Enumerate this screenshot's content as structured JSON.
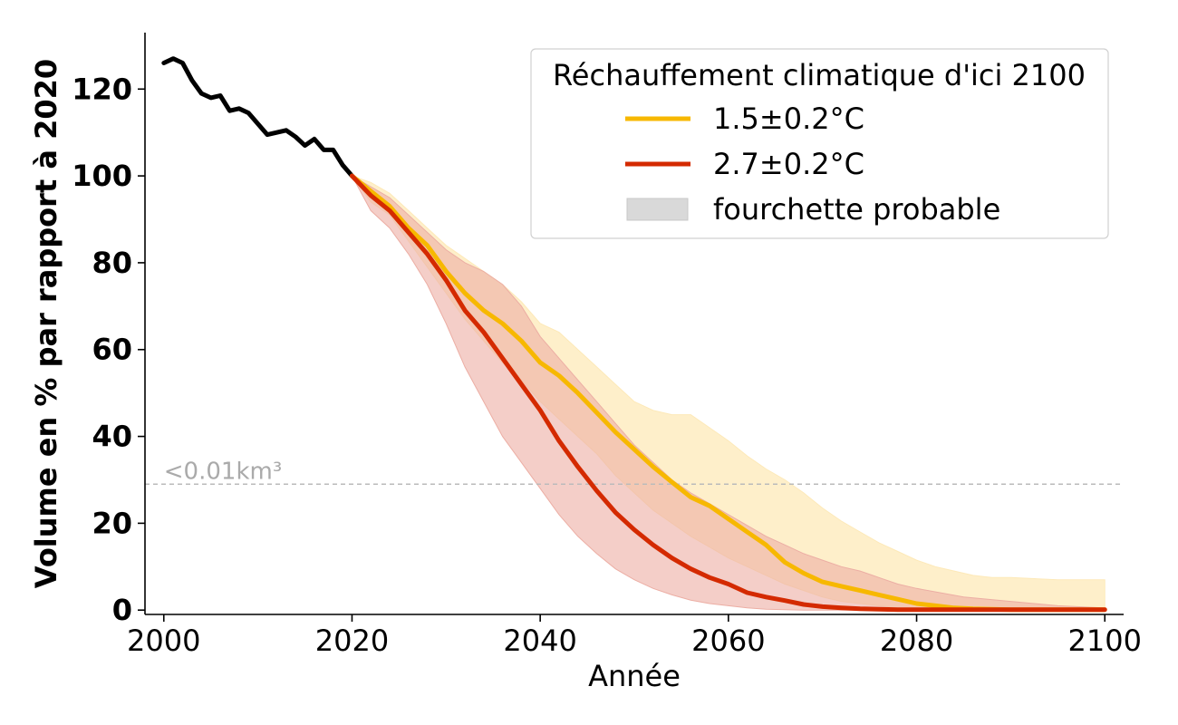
{
  "chart_data": {
    "type": "line",
    "xlabel": "Année",
    "ylabel": "Volume en % par rapport à 2020",
    "xlim": [
      1998,
      2102
    ],
    "ylim": [
      -1,
      133
    ],
    "xticks": [
      "2000",
      "2020",
      "2040",
      "2060",
      "2080",
      "2100"
    ],
    "yticks": [
      "0",
      "20",
      "40",
      "60",
      "80",
      "100",
      "120"
    ],
    "grid": false,
    "legend": {
      "title": "Réchauffement climatique d'ici 2100",
      "placement": "top-right",
      "entries": [
        "1.5±0.2°C",
        "2.7±0.2°C",
        "fourchette probable"
      ],
      "band_label": "fourchette probable"
    },
    "reference_line": {
      "y": 29,
      "label": "<0.01km³",
      "color": "#bbbbbb"
    },
    "colors": {
      "historical": "#000000",
      "s15": "#f7b800",
      "s27": "#d42a00",
      "band15": "#fde9b8",
      "band27": "#ecaea4",
      "legend_band": "#d9d9d9"
    },
    "historical": {
      "x": [
        2000,
        2001,
        2002,
        2003,
        2004,
        2005,
        2006,
        2007,
        2008,
        2009,
        2010,
        2011,
        2012,
        2013,
        2014,
        2015,
        2016,
        2017,
        2018,
        2019,
        2020
      ],
      "y": [
        126,
        127,
        126,
        122,
        119,
        118,
        118.5,
        115,
        115.5,
        114.5,
        112,
        109.5,
        110,
        110.5,
        109,
        107,
        108.5,
        106,
        106,
        102.5,
        100
      ]
    },
    "series": [
      {
        "name": "1.5±0.2°C",
        "x": [
          2020,
          2022,
          2024,
          2026,
          2028,
          2030,
          2032,
          2034,
          2036,
          2038,
          2040,
          2042,
          2044,
          2046,
          2048,
          2050,
          2052,
          2054,
          2056,
          2058,
          2060,
          2062,
          2064,
          2066,
          2068,
          2070,
          2072,
          2074,
          2076,
          2078,
          2080,
          2082,
          2084,
          2086,
          2088,
          2090,
          2095,
          2100
        ],
        "y": [
          100,
          96.5,
          93,
          88,
          84,
          78,
          73,
          69,
          66,
          62,
          57,
          54,
          50,
          45.5,
          41,
          37,
          33,
          29.5,
          26,
          24,
          21,
          18,
          15,
          11,
          8.5,
          6.5,
          5.5,
          4.5,
          3.5,
          2.5,
          1.5,
          1,
          0.5,
          0.3,
          0.2,
          0.1,
          0.1,
          0.1
        ],
        "lower": [
          100,
          94,
          91,
          85,
          79,
          73,
          67,
          62,
          57,
          53,
          48,
          44,
          40,
          36,
          31,
          27,
          23,
          20,
          17,
          14.5,
          12,
          10,
          8,
          6,
          4.5,
          3,
          2,
          1.5,
          1,
          0.5,
          0.3,
          0.1,
          0,
          0,
          0,
          0,
          0,
          0
        ],
        "upper": [
          100,
          98.5,
          96,
          92,
          88,
          84,
          81,
          78,
          75,
          71,
          66,
          64,
          60,
          56,
          52,
          48,
          46,
          45,
          45,
          42,
          39,
          35.5,
          32.5,
          30,
          27,
          23.5,
          20.5,
          18,
          15.5,
          13.5,
          11.5,
          10,
          9,
          8,
          7.5,
          7.5,
          7,
          7
        ]
      },
      {
        "name": "2.7±0.2°C",
        "x": [
          2020,
          2022,
          2024,
          2026,
          2028,
          2030,
          2032,
          2034,
          2036,
          2038,
          2040,
          2042,
          2044,
          2046,
          2048,
          2050,
          2052,
          2054,
          2056,
          2058,
          2060,
          2062,
          2064,
          2066,
          2068,
          2070,
          2072,
          2074,
          2076,
          2078,
          2080,
          2085,
          2090,
          2095,
          2100
        ],
        "y": [
          100,
          95.5,
          92,
          87,
          82,
          76,
          69,
          64,
          58,
          52,
          46,
          39,
          33,
          27.5,
          22.5,
          18.5,
          15,
          12,
          9.5,
          7.5,
          6,
          4,
          3,
          2.2,
          1.3,
          0.8,
          0.5,
          0.3,
          0.2,
          0.1,
          0.1,
          0.1,
          0.1,
          0.1,
          0.1
        ],
        "lower": [
          100,
          92,
          88,
          82,
          75,
          66,
          56,
          48,
          40,
          34,
          28,
          22,
          17,
          13,
          9.5,
          7,
          5,
          3.5,
          2.3,
          1.5,
          1,
          0.5,
          0.2,
          0.1,
          0,
          0,
          0,
          0,
          0,
          0,
          0,
          0,
          0,
          0,
          0
        ],
        "upper": [
          100,
          97.5,
          95,
          91,
          87,
          83,
          80,
          78,
          75,
          70,
          63,
          58,
          53,
          48,
          43,
          38,
          34,
          30,
          27,
          24.5,
          22,
          19.5,
          17,
          15,
          13,
          11.5,
          10,
          9,
          7.5,
          6,
          5,
          3,
          2,
          1,
          0.5
        ]
      }
    ]
  }
}
